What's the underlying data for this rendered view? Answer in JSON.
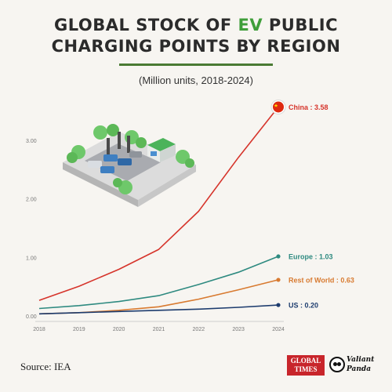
{
  "header": {
    "title_line1_pre": "GLOBAL STOCK OF ",
    "title_highlight": "EV",
    "title_line1_post": " PUBLIC",
    "title_line2": "CHARGING POINTS BY REGION",
    "subtitle": "(Million units, 2018-2024)"
  },
  "footer": {
    "source": "Source: IEA",
    "logo_global_times": "GLOBAL TIMES",
    "logo_valiant_panda": "Valiant Panda"
  },
  "colors": {
    "China": "#d6342b",
    "Europe": "#2e8a80",
    "Rest of World": "#d87a30",
    "US": "#1d3c6e",
    "title_highlight": "#3f9e3a"
  },
  "icons": [
    "charging-station-illustration",
    "china-flag-icon",
    "panda-icon"
  ],
  "chart_data": {
    "type": "line",
    "x": [
      "2018",
      "2019",
      "2020",
      "2021",
      "2022",
      "2023",
      "2024"
    ],
    "ylim": [
      0,
      3.7
    ],
    "yticks": [
      0,
      1,
      2,
      3
    ],
    "ytick_labels": [
      "0.00",
      "1.00",
      "2.00",
      "3.00"
    ],
    "grid": false,
    "series": [
      {
        "name": "China",
        "values": [
          0.28,
          0.52,
          0.81,
          1.15,
          1.8,
          2.72,
          3.58
        ],
        "end_label": "China : 3.58"
      },
      {
        "name": "Europe",
        "values": [
          0.14,
          0.19,
          0.26,
          0.36,
          0.55,
          0.76,
          1.03
        ],
        "end_label": "Europe : 1.03"
      },
      {
        "name": "Rest of World",
        "values": [
          0.05,
          0.07,
          0.11,
          0.17,
          0.3,
          0.46,
          0.63
        ],
        "end_label": "Rest of World : 0.63"
      },
      {
        "name": "US",
        "values": [
          0.05,
          0.07,
          0.09,
          0.11,
          0.13,
          0.16,
          0.2
        ],
        "end_label": "US : 0.20"
      }
    ]
  }
}
